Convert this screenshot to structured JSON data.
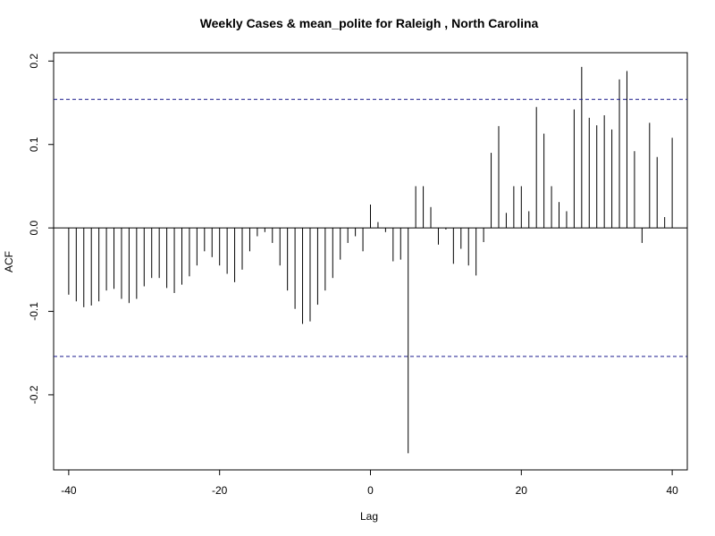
{
  "chart_data": {
    "type": "bar",
    "title": "Weekly Cases & mean_polite for Raleigh , North Carolina",
    "xlabel": "Lag",
    "ylabel": "ACF",
    "xlim": [
      -42,
      42
    ],
    "ylim": [
      -0.29,
      0.21
    ],
    "x_ticks": [
      -40,
      -20,
      0,
      20,
      40
    ],
    "x_tick_labels": [
      "-40",
      "-20",
      "0",
      "20",
      "40"
    ],
    "y_ticks": [
      -0.2,
      -0.1,
      0.0,
      0.1,
      0.2
    ],
    "y_tick_labels": [
      "-0.2",
      "-0.1",
      "0.0",
      "0.1",
      "0.2"
    ],
    "confidence_bound": 0.154,
    "lags": [
      -40,
      -39,
      -38,
      -37,
      -36,
      -35,
      -34,
      -33,
      -32,
      -31,
      -30,
      -29,
      -28,
      -27,
      -26,
      -25,
      -24,
      -23,
      -22,
      -21,
      -20,
      -19,
      -18,
      -17,
      -16,
      -15,
      -14,
      -13,
      -12,
      -11,
      -10,
      -9,
      -8,
      -7,
      -6,
      -5,
      -4,
      -3,
      -2,
      -1,
      0,
      1,
      2,
      3,
      4,
      5,
      6,
      7,
      8,
      9,
      10,
      11,
      12,
      13,
      14,
      15,
      16,
      17,
      18,
      19,
      20,
      21,
      22,
      23,
      24,
      25,
      26,
      27,
      28,
      29,
      30,
      31,
      32,
      33,
      34,
      35,
      36,
      37,
      38,
      39,
      40
    ],
    "values": [
      -0.08,
      -0.088,
      -0.095,
      -0.093,
      -0.088,
      -0.075,
      -0.073,
      -0.085,
      -0.09,
      -0.085,
      -0.07,
      -0.06,
      -0.06,
      -0.072,
      -0.078,
      -0.068,
      -0.058,
      -0.045,
      -0.028,
      -0.035,
      -0.045,
      -0.055,
      -0.065,
      -0.05,
      -0.028,
      -0.01,
      -0.005,
      -0.018,
      -0.045,
      -0.075,
      -0.097,
      -0.115,
      -0.112,
      -0.092,
      -0.075,
      -0.06,
      -0.038,
      -0.018,
      -0.01,
      -0.028,
      0.028,
      0.007,
      -0.005,
      -0.04,
      -0.038,
      -0.27,
      0.05,
      0.05,
      0.025,
      -0.02,
      -0.002,
      -0.043,
      -0.025,
      -0.045,
      -0.057,
      -0.017,
      0.09,
      0.122,
      0.018,
      0.05,
      0.05,
      0.02,
      0.145,
      0.113,
      0.05,
      0.031,
      0.02,
      0.142,
      0.193,
      0.132,
      0.123,
      0.135,
      0.118,
      0.178,
      0.188,
      0.092,
      -0.018,
      0.126,
      0.085,
      0.013,
      0.108
    ]
  }
}
